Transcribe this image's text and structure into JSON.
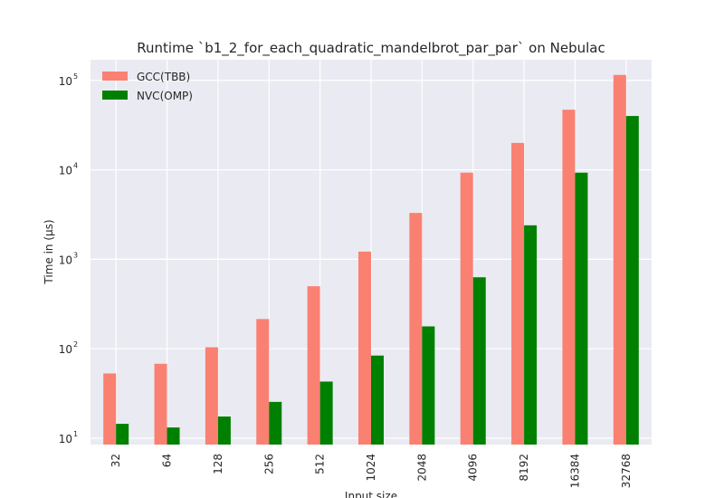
{
  "chart_data": {
    "type": "bar",
    "title": "Runtime `b1_2_for_each_quadratic_mandelbrot_par_par` on Nebulac",
    "xlabel": "Input size",
    "ylabel": "Time in (µs)",
    "yscale": "log",
    "ylim": [
      8.5,
      170000
    ],
    "yticks": [
      {
        "value": 10,
        "base": "10",
        "exp": "1"
      },
      {
        "value": 100,
        "base": "10",
        "exp": "2"
      },
      {
        "value": 1000,
        "base": "10",
        "exp": "3"
      },
      {
        "value": 10000,
        "base": "10",
        "exp": "4"
      },
      {
        "value": 100000,
        "base": "10",
        "exp": "5"
      }
    ],
    "categories": [
      "32",
      "64",
      "128",
      "256",
      "512",
      "1024",
      "2048",
      "4096",
      "8192",
      "16384",
      "32768"
    ],
    "series": [
      {
        "name": "GCC(TBB)",
        "color": "#fa8072",
        "values": [
          53,
          68,
          104,
          215,
          500,
          1220,
          3300,
          9300,
          20000,
          47000,
          115000
        ]
      },
      {
        "name": "NVC(OMP)",
        "color": "#008000",
        "values": [
          14.5,
          13.2,
          17.5,
          25.5,
          43,
          84,
          178,
          630,
          2400,
          9300,
          40000
        ]
      }
    ],
    "legend_position": "top-left",
    "grid": true,
    "background": "#eaeaf2"
  }
}
